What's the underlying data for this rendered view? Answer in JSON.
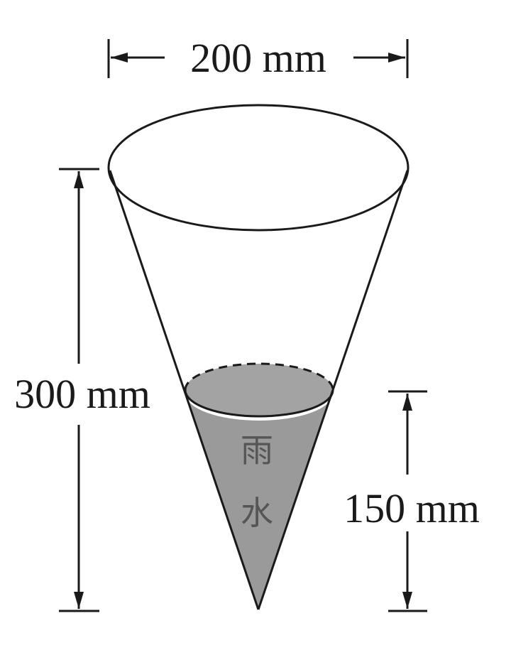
{
  "dimensions": {
    "top_width": "200 mm",
    "total_height": "300 mm",
    "water_height": "150 mm"
  },
  "water_label": {
    "line1": "雨",
    "line2": "水"
  },
  "colors": {
    "line": "#1a1a1a",
    "water_fill": "#9a9a9a",
    "background": "#ffffff"
  }
}
